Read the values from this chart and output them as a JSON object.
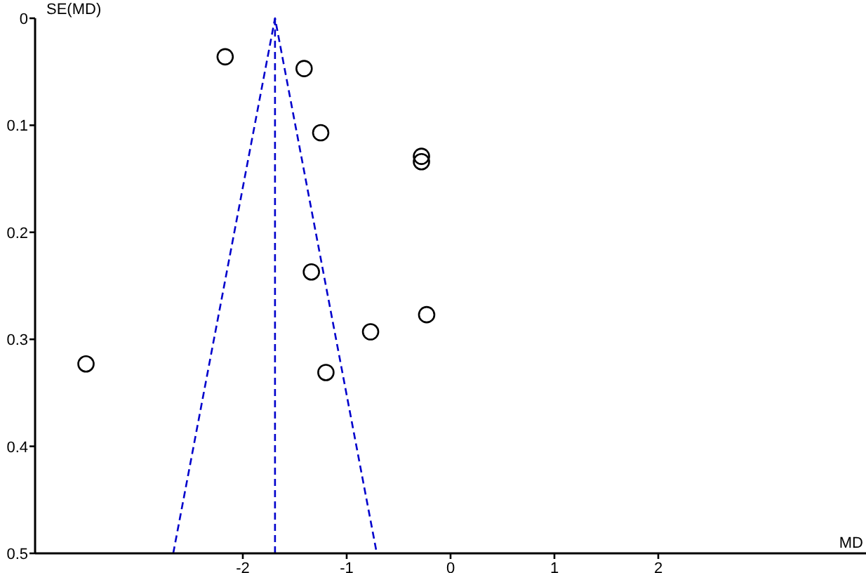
{
  "chart_data": {
    "type": "scatter",
    "xlabel": "MD",
    "ylabel": "SE(MD)",
    "xlim": [
      -4,
      4
    ],
    "ylim": [
      0.5,
      0
    ],
    "xticks": [
      -2,
      -1,
      0,
      1,
      2
    ],
    "yticks": [
      0,
      0.1,
      0.2,
      0.3,
      0.4,
      0.5
    ],
    "grid": false,
    "marker": "circle",
    "series": [
      {
        "color": "#000000",
        "x": [
          -2.17,
          -1.41,
          -1.25,
          -0.28,
          -0.28,
          -1.34,
          -0.23,
          -0.77,
          -1.2,
          -3.51
        ],
        "values": [
          0.036,
          0.047,
          0.107,
          0.129,
          0.134,
          0.237,
          0.277,
          0.293,
          0.331,
          0.323
        ]
      },
      {
        "type": "line",
        "color": "#0000cc",
        "line_style": "dashed",
        "marker": "none",
        "x": [
          -2.67,
          -1.69,
          -0.71
        ],
        "values": [
          0.5,
          0,
          0.5
        ]
      }
    ],
    "ref_lines": [
      {
        "axis": "x",
        "value": -1.69,
        "color": "#0000cc",
        "line_style": "dashed"
      }
    ]
  }
}
